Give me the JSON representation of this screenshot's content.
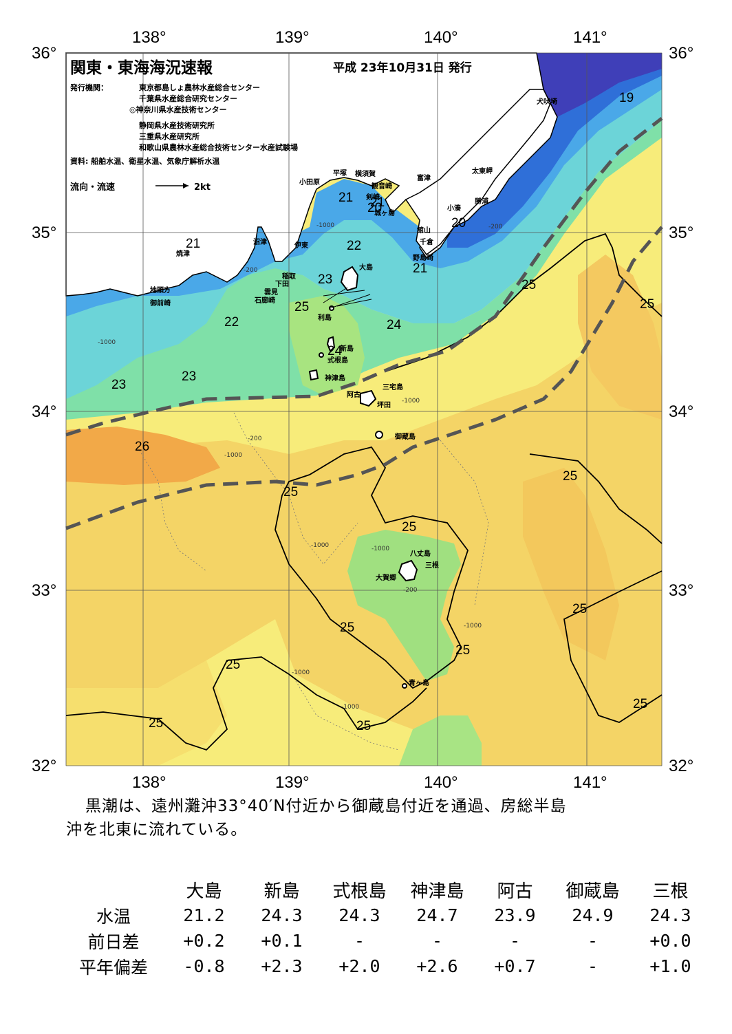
{
  "title": "関東・東海海況速報",
  "issue_date": "平成 23年10月31日 発行",
  "issuers_label": "発行機関：",
  "issuers": [
    "東京都島しょ農林水産総合センター",
    "千葉県水産総合研究センター",
    "◎神奈川県水産技術センター",
    "静岡県水産技術研究所",
    "三重県水産研究所",
    "和歌山県農林水産総合技術センター水産試験場"
  ],
  "sources": "資料: 船舶水温、衛星水温、気象庁解析水温",
  "current_legend": {
    "label": "流向・流速",
    "scale": "2kt"
  },
  "axes": {
    "lon_labels": [
      "138°",
      "139°",
      "140°",
      "141°"
    ],
    "lat_labels": [
      "36°",
      "35°",
      "34°",
      "33°",
      "32°"
    ],
    "lon_range": [
      137.5,
      141.5
    ],
    "lat_range": [
      32,
      36
    ]
  },
  "places": [
    "犬吠埼",
    "平塚",
    "横須賀",
    "小田原",
    "観音崎",
    "富津",
    "太東岬",
    "剣崎",
    "城ヶ島",
    "勝浦",
    "小湊",
    "館山",
    "千倉",
    "野島崎",
    "沼津",
    "伊東",
    "焼津",
    "稲取",
    "下田",
    "地頭方",
    "御前崎",
    "雲見",
    "石廊崎",
    "大島",
    "利島",
    "新島",
    "式根島",
    "神津島",
    "三宅島",
    "阿古",
    "坪田",
    "御蔵島",
    "八丈島",
    "三根",
    "大賀郷",
    "青ヶ島"
  ],
  "isotherm_labels": [
    "19",
    "20",
    "20",
    "21",
    "21",
    "21",
    "21",
    "22",
    "22",
    "23",
    "23",
    "23",
    "24",
    "24",
    "25",
    "25",
    "25",
    "25",
    "25",
    "25",
    "25",
    "25",
    "25",
    "25",
    "25",
    "25",
    "25",
    "26"
  ],
  "depth_labels": [
    "-200",
    "-1000"
  ],
  "colors": {
    "t19": "#3f3fb8",
    "t20": "#2f6fd8",
    "t21": "#4fa3e8",
    "t22": "#6fcfe8",
    "t23": "#6fe0c0",
    "t24": "#a0e880",
    "t25": "#f7ec7a",
    "t25b": "#f4da6a",
    "t26": "#f4b64c",
    "kuroshio": "#555555",
    "land": "#ffffff",
    "grid": "#666666"
  },
  "summary": [
    "黒潮は、遠州灘沖33°40′N付近から御蔵島付近を通過、房総半島",
    "沖を北東に流れている。"
  ],
  "stations": {
    "headers": [
      "大島",
      "新島",
      "式根島",
      "神津島",
      "阿古",
      "御蔵島",
      "三根"
    ],
    "rows": [
      {
        "label": "水温",
        "values": [
          "21.2",
          "24.3",
          "24.3",
          "24.7",
          "23.9",
          "24.9",
          "24.3"
        ]
      },
      {
        "label": "前日差",
        "values": [
          "+0.2",
          "+0.1",
          "-",
          "-",
          "-",
          "-",
          "+0.0"
        ]
      },
      {
        "label": "平年偏差",
        "values": [
          "-0.8",
          "+2.3",
          "+2.0",
          "+2.6",
          "+0.7",
          "-",
          "+1.0"
        ]
      }
    ]
  }
}
